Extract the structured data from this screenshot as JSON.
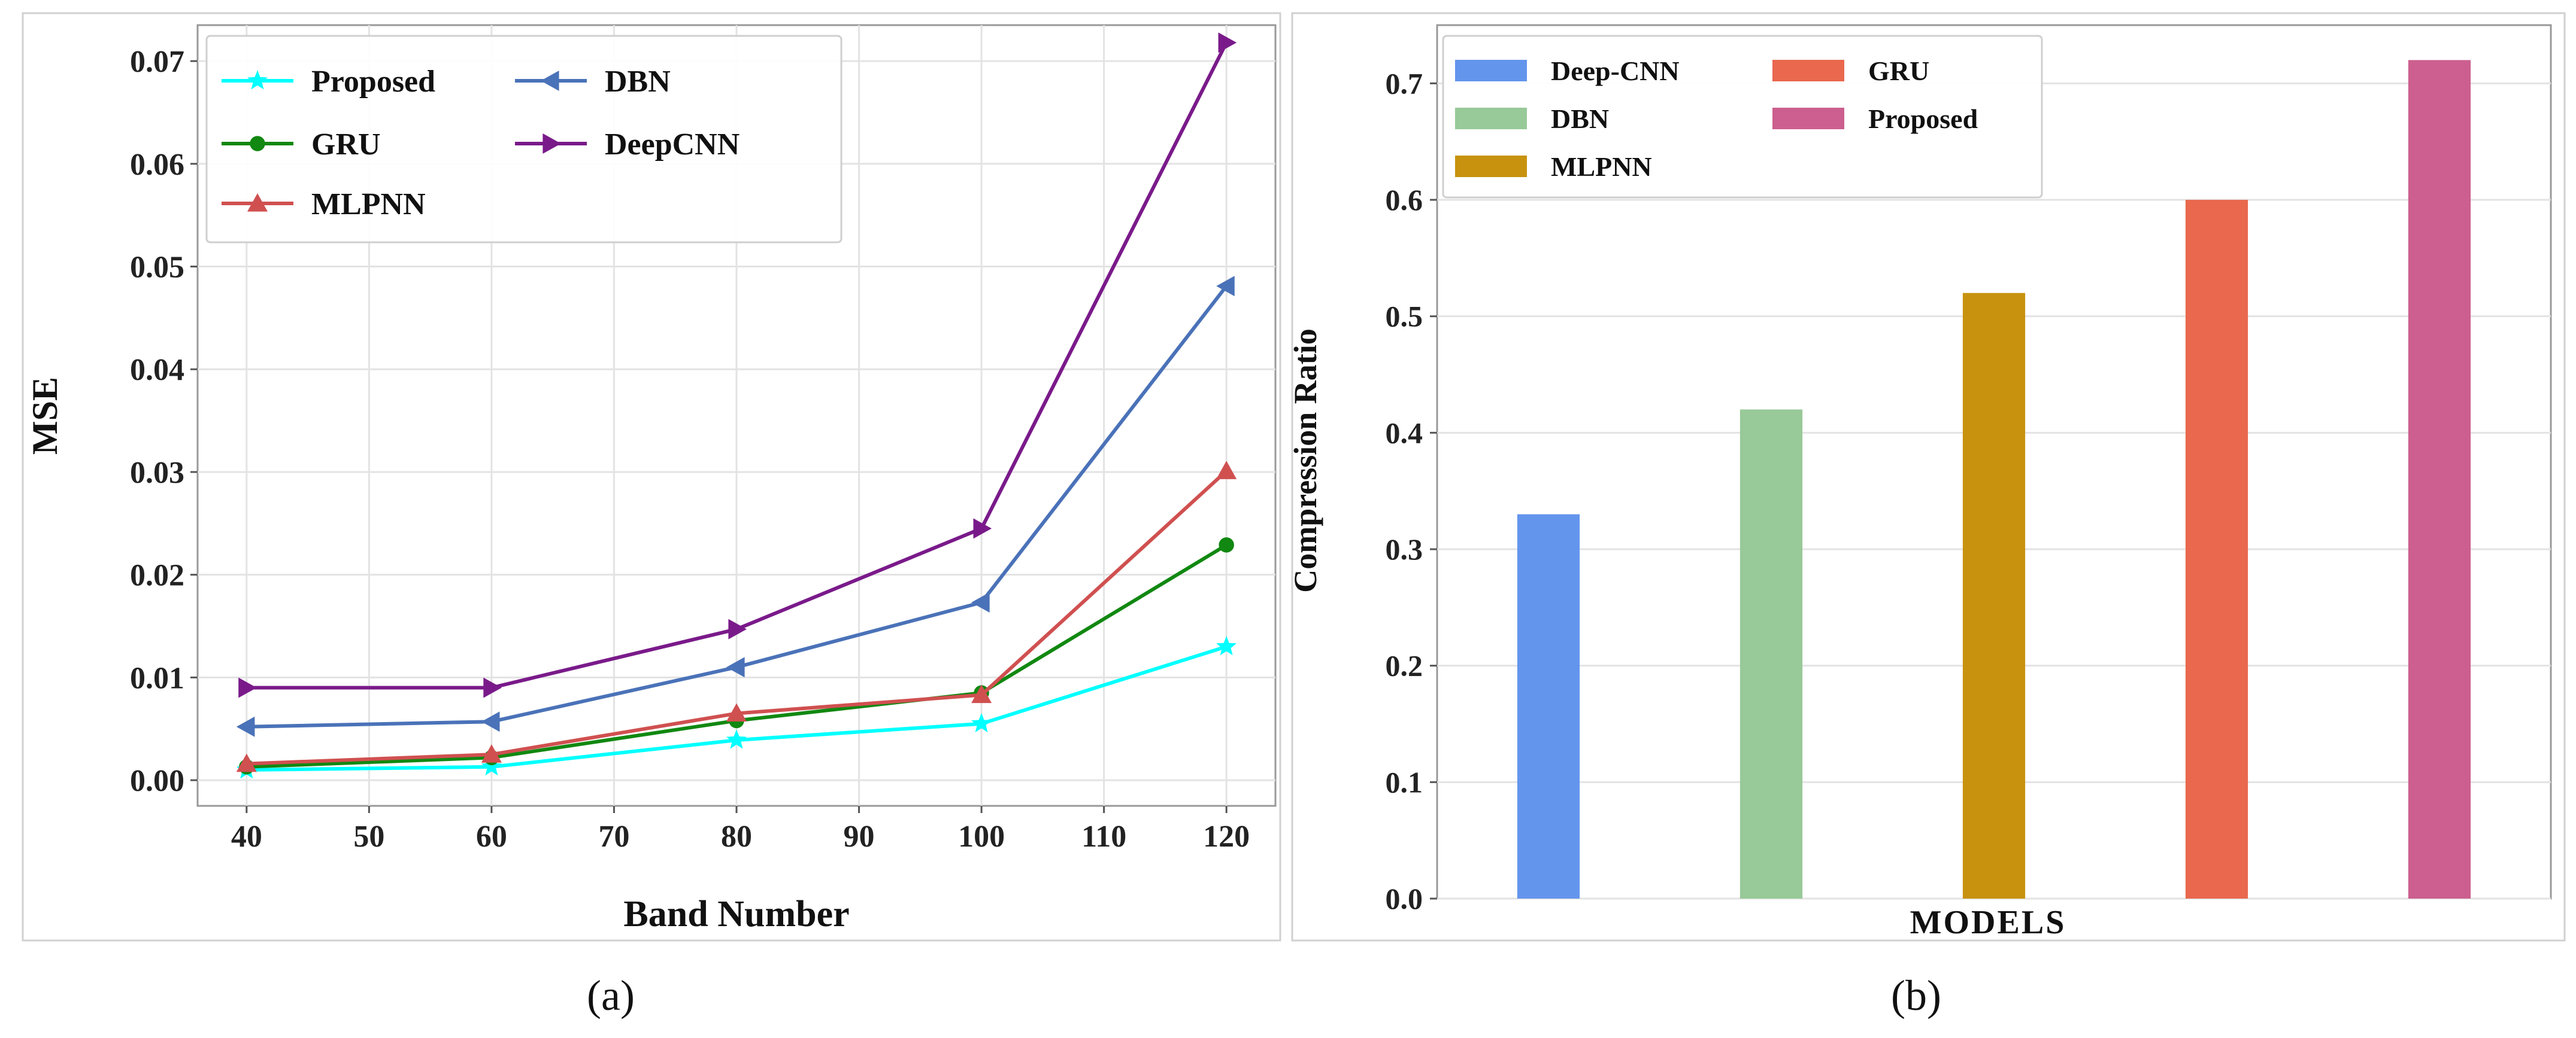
{
  "chart_data": [
    {
      "type": "line",
      "panel": "a",
      "caption": "(a)",
      "title": "",
      "xlabel": "Band Number",
      "ylabel": "MSE",
      "xlim": [
        36,
        124
      ],
      "ylim": [
        -0.0025,
        0.0735
      ],
      "xticks": [
        "40",
        "50",
        "60",
        "70",
        "80",
        "90",
        "100",
        "110",
        "120"
      ],
      "xtick_values": [
        40,
        50,
        60,
        70,
        80,
        90,
        100,
        110,
        120
      ],
      "yticks": [
        "0.00",
        "0.01",
        "0.02",
        "0.03",
        "0.04",
        "0.05",
        "0.06",
        "0.07"
      ],
      "ytick_values": [
        0,
        0.01,
        0.02,
        0.03,
        0.04,
        0.05,
        0.06,
        0.07
      ],
      "grid": true,
      "legend_position": "top-left",
      "x": [
        40,
        60,
        80,
        100,
        120
      ],
      "series": [
        {
          "name": "Proposed",
          "color": "#00ffff",
          "marker": "star",
          "values": [
            0.001,
            0.0013,
            0.0039,
            0.0055,
            0.013
          ]
        },
        {
          "name": "GRU",
          "color": "#118811",
          "marker": "circle",
          "values": [
            0.0013,
            0.0022,
            0.0058,
            0.0085,
            0.0229
          ]
        },
        {
          "name": "MLPNN",
          "color": "#d05050",
          "marker": "triangle-up",
          "values": [
            0.0016,
            0.0025,
            0.0065,
            0.0083,
            0.0301
          ]
        },
        {
          "name": "DBN",
          "color": "#4a72b8",
          "marker": "triangle-left",
          "values": [
            0.0052,
            0.0057,
            0.011,
            0.0173,
            0.0481
          ]
        },
        {
          "name": "DeepCNN",
          "color": "#7a1a8a",
          "marker": "triangle-right",
          "values": [
            0.009,
            0.009,
            0.0147,
            0.0245,
            0.0718
          ]
        }
      ]
    },
    {
      "type": "bar",
      "panel": "b",
      "caption": "(b)",
      "title": "",
      "xlabel": "MODELS",
      "ylabel": "Compression Ratio",
      "ylim": [
        0,
        0.75
      ],
      "yticks": [
        "0.0",
        "0.1",
        "0.2",
        "0.3",
        "0.4",
        "0.5",
        "0.6",
        "0.7"
      ],
      "ytick_values": [
        0,
        0.1,
        0.2,
        0.3,
        0.4,
        0.5,
        0.6,
        0.7
      ],
      "grid": true,
      "legend_position": "top-left",
      "categories": [
        "Deep-CNN",
        "DBN",
        "MLPNN",
        "GRU",
        "Proposed"
      ],
      "values": [
        0.33,
        0.42,
        0.52,
        0.6,
        0.72
      ],
      "colors": [
        "#6495ed",
        "#98c998",
        "#c8920e",
        "#e9684e",
        "#cc5f8f"
      ]
    }
  ]
}
